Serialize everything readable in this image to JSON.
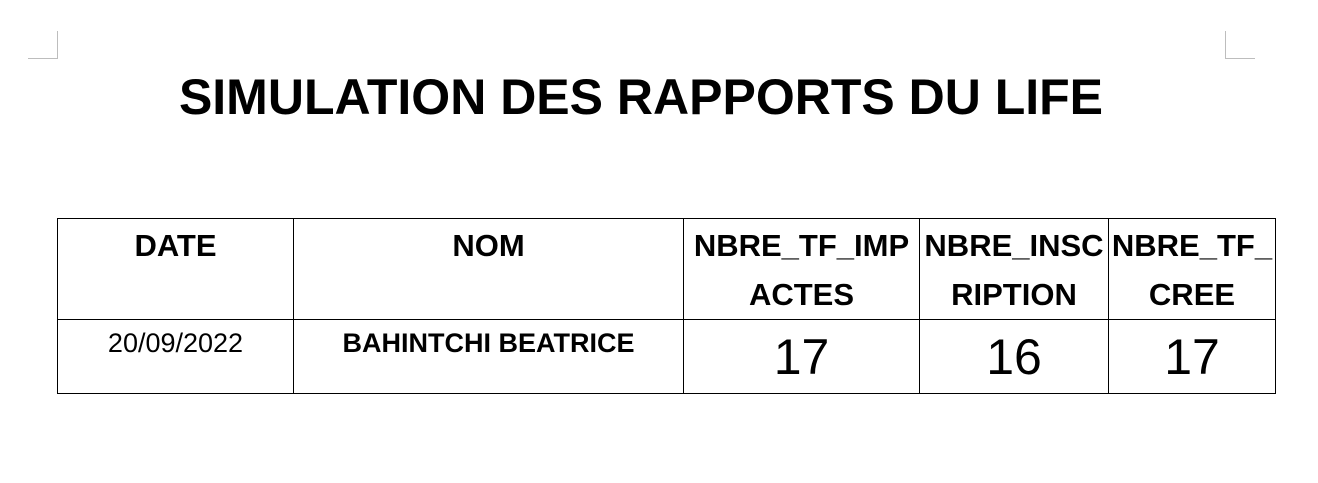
{
  "document": {
    "title": "SIMULATION DES RAPPORTS DU LIFE"
  },
  "table": {
    "headers": {
      "date": "DATE",
      "nom": "NOM",
      "nbre_tf_impactes": "NBRE_TF_IMPACTES",
      "nbre_inscription": "NBRE_INSCRIPTION",
      "nbre_tf_cree": "NBRE_TF_CREE"
    },
    "rows": [
      {
        "date": "20/09/2022",
        "nom": "BAHINTCHI BEATRICE",
        "nbre_tf_impactes": "17",
        "nbre_inscription": "16",
        "nbre_tf_cree": "17"
      }
    ]
  }
}
